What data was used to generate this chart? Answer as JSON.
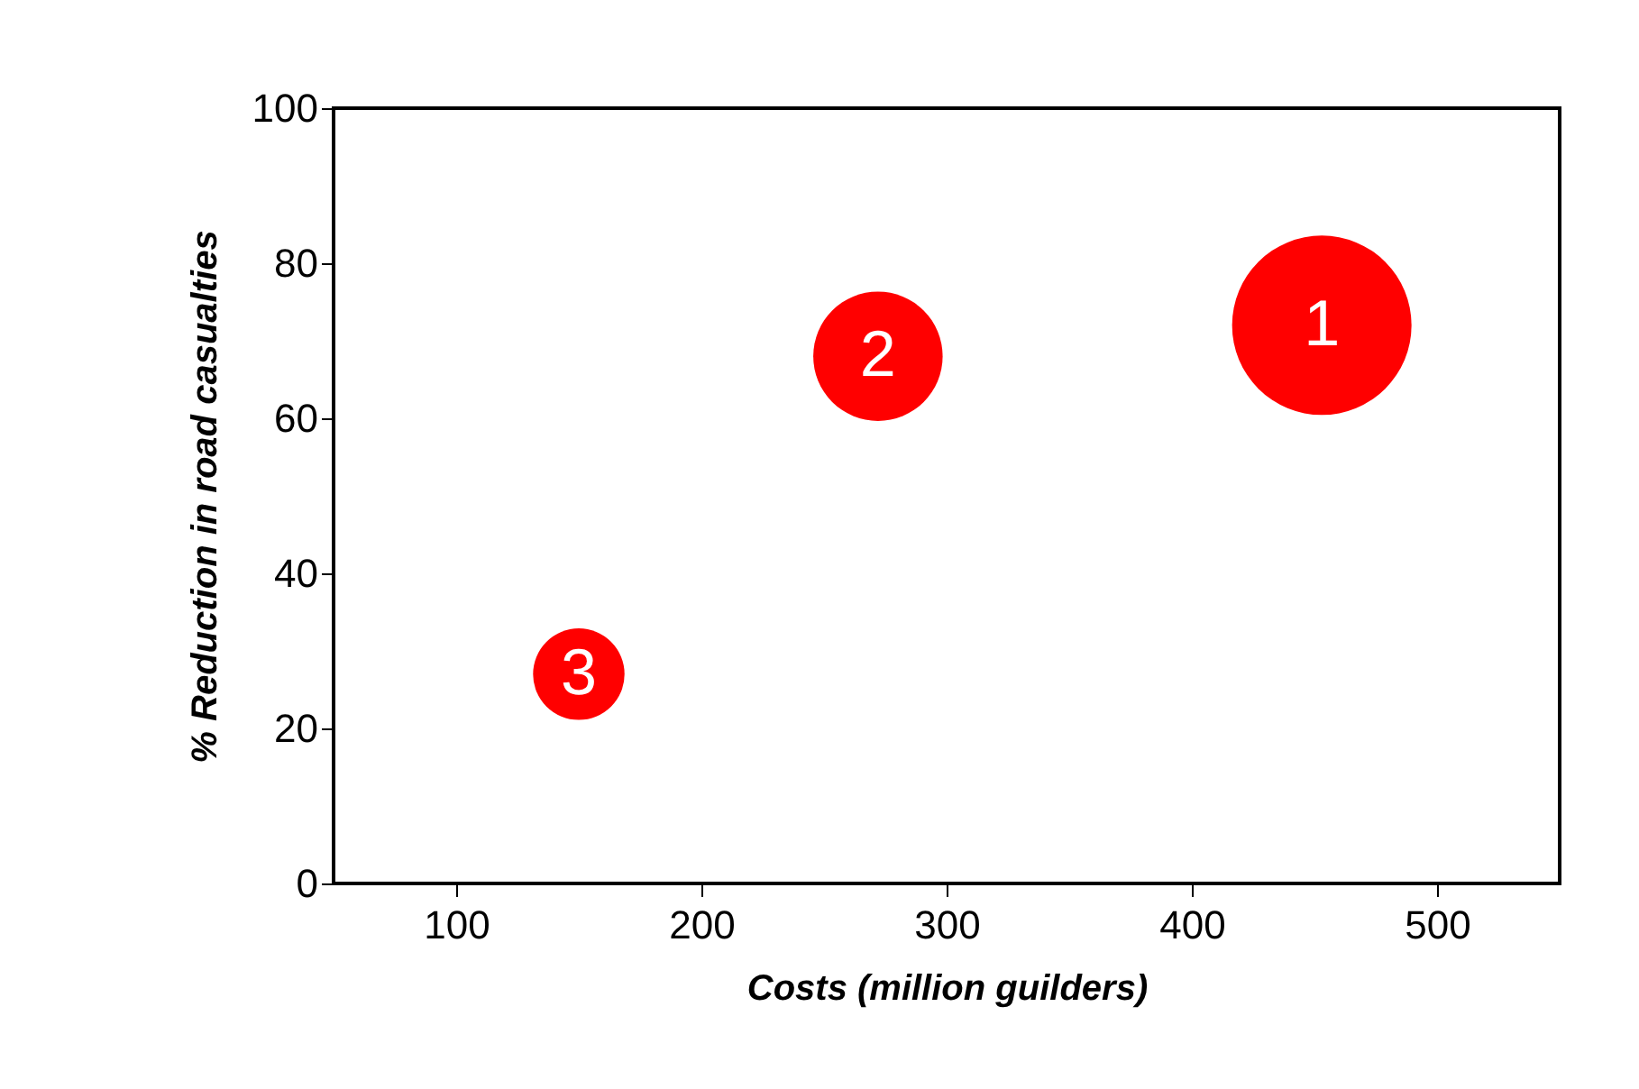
{
  "chart_data": {
    "type": "bubble",
    "xlabel": "Costs (million guilders)",
    "ylabel": "% Reduction in road casualties",
    "x": [
      453,
      272,
      150
    ],
    "values": [
      72,
      68,
      27
    ],
    "sizes": [
      1,
      0.52,
      0.26
    ],
    "color": "#ff0000",
    "xlim": [
      50,
      550
    ],
    "xticks": [
      100,
      200,
      300,
      400,
      500
    ],
    "ylim": [
      0,
      100
    ],
    "yticks": [
      0,
      20,
      40,
      60,
      80,
      100
    ],
    "annotations": [
      {
        "text": "1",
        "x": 453,
        "y": 72
      },
      {
        "text": "2",
        "x": 272,
        "y": 68
      },
      {
        "text": "3",
        "x": 150,
        "y": 27
      }
    ],
    "grid": false,
    "marker": "circle"
  }
}
